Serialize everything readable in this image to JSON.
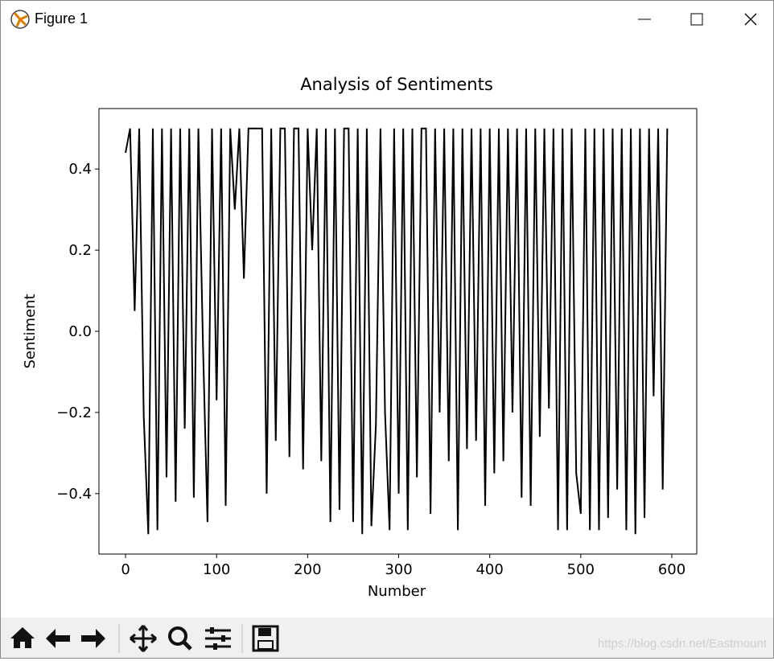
{
  "window": {
    "title": "Figure 1",
    "watermark": "https://blog.csdn.net/Eastmount"
  },
  "chart_data": {
    "type": "line",
    "title": "Analysis of Sentiments",
    "x_label": "Number",
    "y_label": "Sentiment",
    "xlim": [
      -29.2,
      627.4
    ],
    "ylim": [
      -0.549,
      0.549
    ],
    "xticks": [
      0,
      100,
      200,
      300,
      400,
      500,
      600
    ],
    "yticks": [
      {
        "value": -0.4,
        "label": "−0.4"
      },
      {
        "value": -0.2,
        "label": "−0.2"
      },
      {
        "value": 0,
        "label": "0.0"
      },
      0.2,
      0.4
    ],
    "series": [
      {
        "color": "#000000",
        "x": [
          0,
          5,
          10,
          15,
          20,
          25,
          30,
          35,
          40,
          45,
          50,
          55,
          60,
          65,
          70,
          75,
          80,
          85,
          90,
          95,
          100,
          105,
          110,
          115,
          120,
          125,
          130,
          135,
          140,
          145,
          150,
          155,
          160,
          165,
          170,
          175,
          180,
          185,
          190,
          195,
          200,
          205,
          210,
          215,
          220,
          225,
          230,
          235,
          240,
          245,
          250,
          255,
          260,
          265,
          270,
          275,
          280,
          285,
          290,
          295,
          300,
          305,
          310,
          315,
          320,
          325,
          330,
          335,
          340,
          345,
          350,
          355,
          360,
          365,
          370,
          375,
          380,
          385,
          390,
          395,
          400,
          405,
          410,
          415,
          420,
          425,
          430,
          435,
          440,
          445,
          450,
          455,
          460,
          465,
          470,
          475,
          480,
          485,
          490,
          495,
          500,
          505,
          510,
          515,
          520,
          525,
          530,
          535,
          540,
          545,
          550,
          555,
          560,
          565,
          570,
          575,
          580,
          585,
          590,
          595
        ],
        "values": [
          0.44,
          0.5,
          0.05,
          0.5,
          -0.21,
          -0.5,
          0.5,
          -0.49,
          0.5,
          -0.36,
          0.5,
          -0.42,
          0.5,
          -0.24,
          0.5,
          -0.41,
          0.5,
          -0.03,
          -0.47,
          0.5,
          -0.17,
          0.5,
          -0.43,
          0.5,
          0.3,
          0.5,
          0.13,
          0.5,
          0.5,
          0.5,
          0.5,
          -0.4,
          0.5,
          -0.27,
          0.5,
          0.5,
          -0.31,
          0.5,
          0.5,
          -0.34,
          0.5,
          0.2,
          0.5,
          -0.32,
          0.5,
          -0.47,
          0.5,
          -0.44,
          0.5,
          0.5,
          -0.47,
          0.5,
          -0.5,
          0.5,
          -0.48,
          -0.23,
          0.5,
          -0.2,
          -0.49,
          0.5,
          -0.4,
          0.5,
          -0.49,
          0.5,
          -0.36,
          0.5,
          0.5,
          -0.45,
          0.5,
          -0.2,
          0.5,
          -0.32,
          0.5,
          -0.49,
          0.5,
          -0.29,
          0.5,
          -0.27,
          0.5,
          -0.43,
          0.5,
          -0.35,
          0.5,
          -0.32,
          0.5,
          -0.2,
          0.5,
          -0.41,
          0.5,
          -0.43,
          0.5,
          -0.26,
          0.5,
          -0.19,
          0.5,
          -0.49,
          0.5,
          -0.49,
          0.5,
          -0.35,
          -0.45,
          0.5,
          -0.49,
          0.5,
          -0.49,
          0.5,
          -0.46,
          0.5,
          -0.39,
          0.5,
          -0.49,
          0.5,
          -0.5,
          0.5,
          -0.46,
          0.5,
          -0.16,
          0.5,
          -0.39,
          0.5
        ]
      }
    ]
  }
}
